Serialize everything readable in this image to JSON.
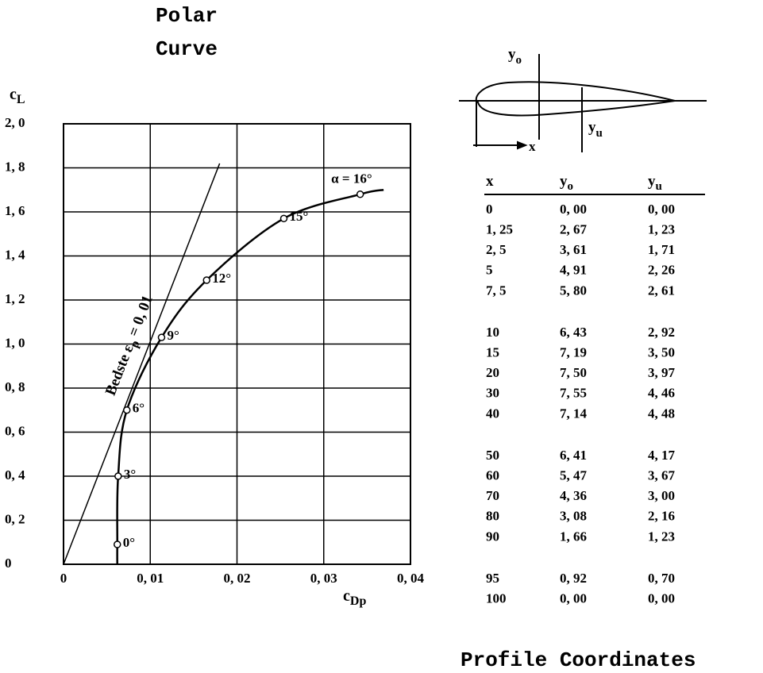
{
  "chart_data": {
    "type": "line",
    "title_lines": [
      "Polar",
      "Curve"
    ],
    "ylabel": "c",
    "ylabel_sub": "L",
    "xlabel": "c",
    "xlabel_sub": "Dp",
    "xlim": [
      0,
      0.04
    ],
    "ylim": [
      0,
      2.0
    ],
    "xticks": [
      0,
      {
        "value": 0.01,
        "label": "0, 01"
      },
      {
        "value": 0.02,
        "label": "0, 02"
      },
      {
        "value": 0.03,
        "label": "0, 03"
      },
      {
        "value": 0.04,
        "label": "0, 04"
      }
    ],
    "yticks": [
      0,
      {
        "value": 0.2,
        "label": "0, 2"
      },
      {
        "value": 0.4,
        "label": "0, 4"
      },
      {
        "value": 0.6,
        "label": "0, 6"
      },
      {
        "value": 0.8,
        "label": "0, 8"
      },
      {
        "value": 1.0,
        "label": "1, 0"
      },
      {
        "value": 1.2,
        "label": "1, 2"
      },
      {
        "value": 1.4,
        "label": "1, 4"
      },
      {
        "value": 1.6,
        "label": "1, 6"
      },
      {
        "value": 1.8,
        "label": "1, 8"
      },
      {
        "value": 2.0,
        "label": "2, 0"
      }
    ],
    "grid": true,
    "series": [
      {
        "color": "#000000",
        "x": [
          0.0062,
          0.0062,
          0.0063,
          0.0073,
          0.0113,
          0.0165,
          0.0254,
          0.0342,
          0.0369
        ],
        "values": [
          0,
          0.09,
          0.4,
          0.7,
          1.03,
          1.29,
          1.57,
          1.68,
          1.7
        ],
        "point_labels": [
          null,
          "0°",
          "3°",
          "6°",
          "9°",
          "12°",
          "15°",
          "α = 16°",
          null
        ]
      }
    ],
    "tangent": {
      "x": [
        0,
        0.018
      ],
      "values": [
        0,
        1.82
      ],
      "label_main": "Bedste ε",
      "label_sub": "p",
      "label_rest": " = 0, 01"
    }
  },
  "diagram": {
    "yo_main": "y",
    "yo_sub": "o",
    "yu_main": "y",
    "yu_sub": "u",
    "x_label": "x"
  },
  "table": {
    "headers": [
      {
        "text": "x"
      },
      {
        "text": "y",
        "sub": "o"
      },
      {
        "text": "y",
        "sub": "u"
      }
    ],
    "rows": [
      [
        "0",
        "0, 00",
        "0, 00"
      ],
      [
        "1, 25",
        "2, 67",
        "1, 23"
      ],
      [
        "2, 5",
        "3, 61",
        "1, 71"
      ],
      [
        "5",
        "4, 91",
        "2, 26"
      ],
      [
        "7, 5",
        "5, 80",
        "2, 61"
      ],
      [
        "10",
        "6, 43",
        "2, 92"
      ],
      [
        "15",
        "7, 19",
        "3, 50"
      ],
      [
        "20",
        "7, 50",
        "3, 97"
      ],
      [
        "30",
        "7, 55",
        "4, 46"
      ],
      [
        "40",
        "7, 14",
        "4, 48"
      ],
      [
        "50",
        "6, 41",
        "4, 17"
      ],
      [
        "60",
        "5, 47",
        "3, 67"
      ],
      [
        "70",
        "4, 36",
        "3, 00"
      ],
      [
        "80",
        "3, 08",
        "2, 16"
      ],
      [
        "90",
        "1, 66",
        "1, 23"
      ],
      [
        "95",
        "0, 92",
        "0, 70"
      ],
      [
        "100",
        "0, 00",
        "0, 00"
      ]
    ],
    "caption": "Profile Coordinates"
  }
}
